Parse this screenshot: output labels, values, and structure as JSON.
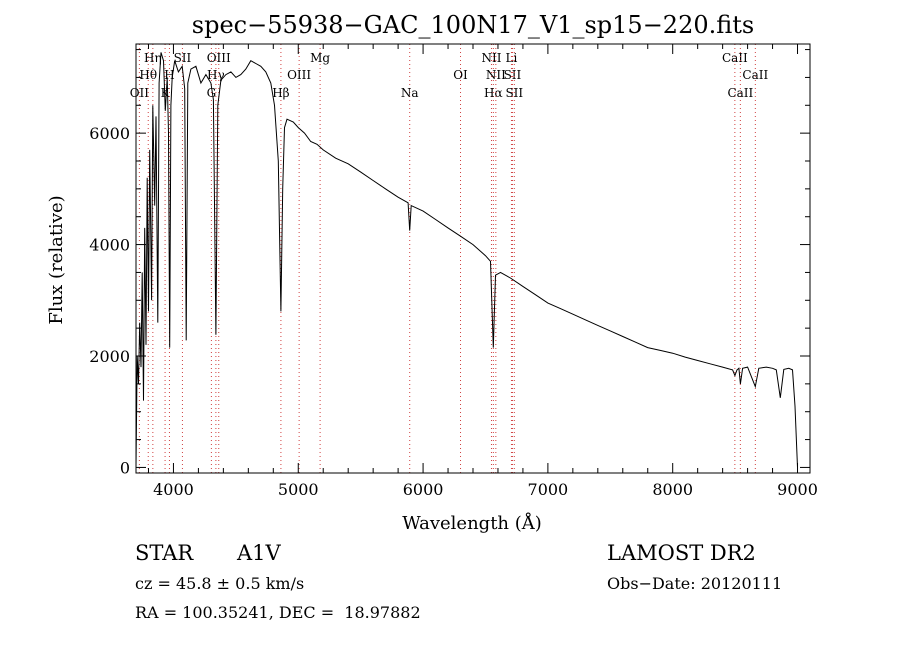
{
  "chart_data": {
    "type": "line",
    "title": "spec−55938−GAC_100N17_V1_sp15−220.fits",
    "xlabel": "Wavelength (Å)",
    "ylabel": "Flux (relative)",
    "xlim": [
      3700,
      9100
    ],
    "ylim": [
      -100,
      7600
    ],
    "xticks": [
      4000,
      5000,
      6000,
      7000,
      8000,
      9000
    ],
    "yticks": [
      0,
      2000,
      4000,
      6000
    ],
    "grid": false,
    "legend": "none",
    "series": [
      {
        "values": [
          [
            3700,
            0
          ],
          [
            3710,
            2000
          ],
          [
            3720,
            1500
          ],
          [
            3730,
            2600
          ],
          [
            3740,
            1800
          ],
          [
            3750,
            3500
          ],
          [
            3760,
            1200
          ],
          [
            3770,
            4300
          ],
          [
            3780,
            2200
          ],
          [
            3790,
            5200
          ],
          [
            3800,
            2800
          ],
          [
            3810,
            5700
          ],
          [
            3825,
            3000
          ],
          [
            3835,
            6500
          ],
          [
            3850,
            4700
          ],
          [
            3860,
            6300
          ],
          [
            3875,
            2600
          ],
          [
            3885,
            6900
          ],
          [
            3900,
            7450
          ],
          [
            3920,
            7300
          ],
          [
            3935,
            6400
          ],
          [
            3950,
            7000
          ],
          [
            3960,
            6000
          ],
          [
            3970,
            2150
          ],
          [
            3980,
            6500
          ],
          [
            3990,
            7000
          ],
          [
            4010,
            7300
          ],
          [
            4040,
            7100
          ],
          [
            4070,
            7200
          ],
          [
            4090,
            6800
          ],
          [
            4102,
            2280
          ],
          [
            4115,
            6900
          ],
          [
            4140,
            7150
          ],
          [
            4180,
            7200
          ],
          [
            4220,
            6900
          ],
          [
            4260,
            7050
          ],
          [
            4300,
            6900
          ],
          [
            4320,
            6600
          ],
          [
            4340,
            2380
          ],
          [
            4355,
            6500
          ],
          [
            4380,
            6950
          ],
          [
            4420,
            7050
          ],
          [
            4460,
            7100
          ],
          [
            4500,
            7000
          ],
          [
            4540,
            7050
          ],
          [
            4580,
            7150
          ],
          [
            4620,
            7300
          ],
          [
            4660,
            7250
          ],
          [
            4700,
            7200
          ],
          [
            4740,
            7100
          ],
          [
            4780,
            6900
          ],
          [
            4810,
            6500
          ],
          [
            4840,
            5500
          ],
          [
            4861,
            2800
          ],
          [
            4875,
            5000
          ],
          [
            4890,
            6100
          ],
          [
            4910,
            6250
          ],
          [
            4960,
            6200
          ],
          [
            5000,
            6100
          ],
          [
            5050,
            6000
          ],
          [
            5100,
            5850
          ],
          [
            5150,
            5800
          ],
          [
            5200,
            5700
          ],
          [
            5300,
            5550
          ],
          [
            5400,
            5450
          ],
          [
            5500,
            5300
          ],
          [
            5600,
            5150
          ],
          [
            5700,
            5000
          ],
          [
            5800,
            4850
          ],
          [
            5880,
            4750
          ],
          [
            5893,
            4250
          ],
          [
            5905,
            4700
          ],
          [
            6000,
            4600
          ],
          [
            6100,
            4450
          ],
          [
            6200,
            4300
          ],
          [
            6300,
            4150
          ],
          [
            6400,
            4000
          ],
          [
            6500,
            3800
          ],
          [
            6540,
            3700
          ],
          [
            6563,
            2150
          ],
          [
            6580,
            3450
          ],
          [
            6620,
            3500
          ],
          [
            6700,
            3400
          ],
          [
            6800,
            3250
          ],
          [
            6900,
            3100
          ],
          [
            7000,
            2950
          ],
          [
            7100,
            2850
          ],
          [
            7200,
            2750
          ],
          [
            7300,
            2650
          ],
          [
            7400,
            2550
          ],
          [
            7500,
            2450
          ],
          [
            7600,
            2350
          ],
          [
            7700,
            2250
          ],
          [
            7800,
            2150
          ],
          [
            7900,
            2100
          ],
          [
            8000,
            2050
          ],
          [
            8100,
            1980
          ],
          [
            8200,
            1920
          ],
          [
            8300,
            1860
          ],
          [
            8400,
            1800
          ],
          [
            8480,
            1750
          ],
          [
            8498,
            1650
          ],
          [
            8515,
            1750
          ],
          [
            8530,
            1780
          ],
          [
            8542,
            1500
          ],
          [
            8560,
            1780
          ],
          [
            8600,
            1800
          ],
          [
            8662,
            1450
          ],
          [
            8690,
            1780
          ],
          [
            8750,
            1800
          ],
          [
            8800,
            1780
          ],
          [
            8830,
            1750
          ],
          [
            8862,
            1250
          ],
          [
            8890,
            1760
          ],
          [
            8930,
            1780
          ],
          [
            8960,
            1750
          ],
          [
            8980,
            1100
          ],
          [
            9000,
            0
          ]
        ]
      }
    ],
    "line_markers": [
      {
        "x": 3727,
        "label": "OII",
        "level": 3
      },
      {
        "x": 3798,
        "label": "Hθ",
        "level": 1
      },
      {
        "x": 3835,
        "label": "Hη",
        "level": 0
      },
      {
        "x": 3933,
        "label": "K",
        "level": 3
      },
      {
        "x": 3968,
        "label": "H",
        "level": 2
      },
      {
        "x": 4072,
        "label": "SII",
        "level": 0
      },
      {
        "x": 4304,
        "label": "G",
        "level": 3
      },
      {
        "x": 4340,
        "label": "Hγ",
        "level": 2
      },
      {
        "x": 4363,
        "label": "OIII",
        "level": 0
      },
      {
        "x": 4861,
        "label": "Hβ",
        "level": 3
      },
      {
        "x": 5007,
        "label": "OIII",
        "level": 2
      },
      {
        "x": 5175,
        "label": "Mg",
        "level": 0
      },
      {
        "x": 5893,
        "label": "Na",
        "level": 3
      },
      {
        "x": 6300,
        "label": "OI",
        "level": 2
      },
      {
        "x": 6548,
        "label": "NII",
        "level": 0
      },
      {
        "x": 6563,
        "label": "Hα",
        "level": 3
      },
      {
        "x": 6583,
        "label": "NII",
        "level": 2
      },
      {
        "x": 6708,
        "label": "Li",
        "level": 0
      },
      {
        "x": 6716,
        "label": "SII",
        "level": 2
      },
      {
        "x": 6731,
        "label": "SII",
        "level": 3
      },
      {
        "x": 8498,
        "label": "CaII",
        "level": 0
      },
      {
        "x": 8542,
        "label": "CaII",
        "level": 3
      },
      {
        "x": 8662,
        "label": "CaII",
        "level": 2
      }
    ]
  },
  "info": {
    "object_class": "STAR",
    "subclass": "A1V",
    "redshift": "cz = 45.8 ± 0.5 km/s",
    "coordinates": "RA = 100.35241, DEC =  18.97882",
    "survey": "LAMOST DR2",
    "obs_date": "Obs−Date: 20120111"
  }
}
